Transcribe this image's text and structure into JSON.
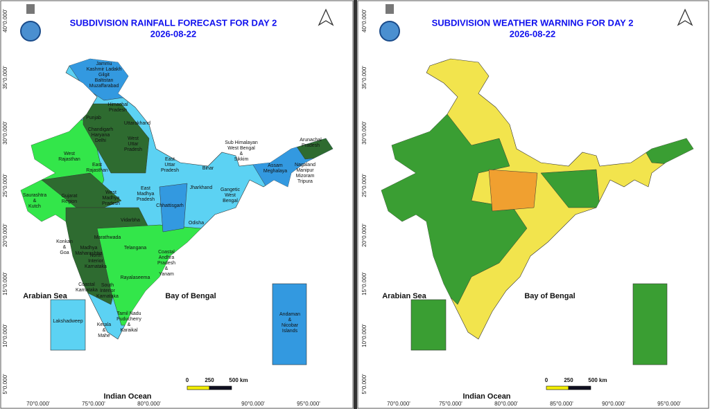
{
  "panels": [
    {
      "title": "SUBDIVISION RAINFALL FORECAST FOR DAY 2",
      "date": "2026-08-22",
      "latitudes": [
        "40°0.000'",
        "35°0.000'",
        "30°0.000'",
        "25°0.000'",
        "20°0.000'",
        "15°0.000'",
        "10°0.000'",
        "5°0.000'"
      ],
      "longitudes": [
        "70°0.000'",
        "75°0.000'",
        "80°0.000'",
        "90°0.000'",
        "95°0.000'"
      ],
      "seas": {
        "arabian": "Arabian Sea",
        "bengal": "Bay of Bengal",
        "indian": "Indian Ocean"
      },
      "scale": [
        "0",
        "250",
        "500 km"
      ],
      "regions": [
        {
          "lines": [
            "Jammu",
            "Kashmir Ladakh",
            "Gilgit",
            "Baltistan",
            "Muzaffarabad"
          ]
        },
        {
          "lines": [
            "Himachal",
            "Pradesh"
          ]
        },
        {
          "lines": [
            "Punjab"
          ]
        },
        {
          "lines": [
            "Uttarakhand"
          ]
        },
        {
          "lines": [
            "Chandigarh",
            "Haryana",
            "Delhi"
          ]
        },
        {
          "lines": [
            "West",
            "Uttar",
            "Pradesh"
          ]
        },
        {
          "lines": [
            "West",
            "Rajasthan"
          ]
        },
        {
          "lines": [
            "East",
            "Rajasthan"
          ]
        },
        {
          "lines": [
            "East",
            "Uttar",
            "Pradesh"
          ]
        },
        {
          "lines": [
            "Bihar"
          ]
        },
        {
          "lines": [
            "Sub Himalayan",
            "West Bengal",
            "&",
            "Sikkim"
          ]
        },
        {
          "lines": [
            "Arunachal",
            "Pradesh"
          ]
        },
        {
          "lines": [
            "Assam",
            "Meghalaya"
          ]
        },
        {
          "lines": [
            "Nagaland",
            "Manipur",
            "Mizoram",
            "Tripura"
          ]
        },
        {
          "lines": [
            "Saurashtra",
            "&",
            "Kutch"
          ]
        },
        {
          "lines": [
            "Gujarat",
            "Region"
          ]
        },
        {
          "lines": [
            "West",
            "Madhya",
            "Pradesh"
          ]
        },
        {
          "lines": [
            "East",
            "Madhya",
            "Pradesh"
          ]
        },
        {
          "lines": [
            "Jharkhand"
          ]
        },
        {
          "lines": [
            "Gangetic",
            "West",
            "Bengal"
          ]
        },
        {
          "lines": [
            "Chhattisgarh"
          ]
        },
        {
          "lines": [
            "Odisha"
          ]
        },
        {
          "lines": [
            "Vidarbha"
          ]
        },
        {
          "lines": [
            "Konkan",
            "&",
            "Goa"
          ]
        },
        {
          "lines": [
            "Madhya",
            "Maharashtra"
          ]
        },
        {
          "lines": [
            "Marathwada"
          ]
        },
        {
          "lines": [
            "Telangana"
          ]
        },
        {
          "lines": [
            "North",
            "Interior",
            "Karnataka"
          ]
        },
        {
          "lines": [
            "Coastal",
            "Andhra",
            "Pradesh",
            "&",
            "Yanam"
          ]
        },
        {
          "lines": [
            "Rayalaseema"
          ]
        },
        {
          "lines": [
            "Coastal",
            "Karnataka"
          ]
        },
        {
          "lines": [
            "South",
            "Interior",
            "Karnataka"
          ]
        },
        {
          "lines": [
            "Tamil Nadu",
            "Puducherry",
            "&",
            "Karaikal"
          ]
        },
        {
          "lines": [
            "Kerala",
            "&",
            "Mahe"
          ]
        },
        {
          "lines": [
            "Lakshadweep"
          ]
        },
        {
          "lines": [
            "Andaman",
            "&",
            "Nicobar",
            "Islands"
          ]
        }
      ]
    },
    {
      "title": "SUBDIVISION WEATHER WARNING FOR DAY 2",
      "date": "2026-08-22",
      "latitudes": [
        "40°0.000'",
        "35°0.000'",
        "30°0.000'",
        "25°0.000'",
        "20°0.000'",
        "15°0.000'",
        "10°0.000'",
        "5°0.000'"
      ],
      "longitudes": [
        "70°0.000'",
        "75°0.000'",
        "80°0.000'",
        "85°0.000'",
        "90°0.000'",
        "95°0.000'"
      ],
      "seas": {
        "arabian": "Arabian Sea",
        "bengal": "Bay of Bengal",
        "indian": "Indian Ocean"
      },
      "scale": [
        "0",
        "250",
        "500 km"
      ]
    }
  ]
}
